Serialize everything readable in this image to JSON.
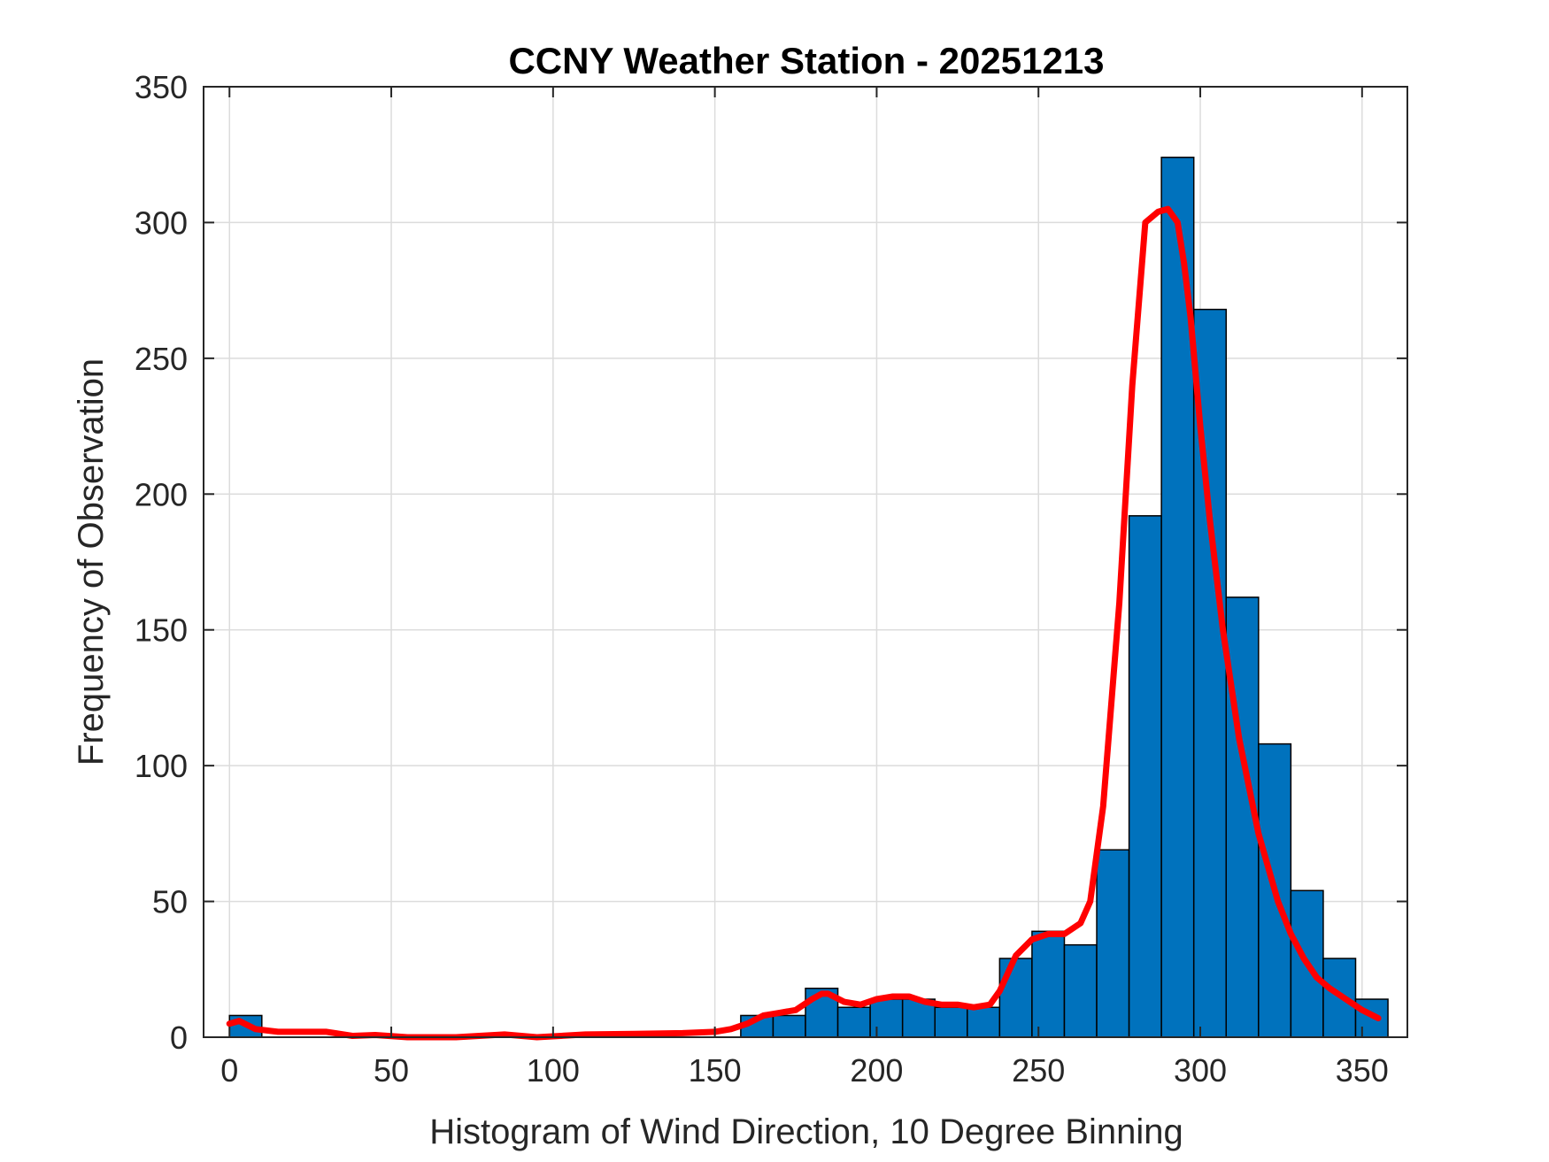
{
  "chart_data": {
    "type": "bar",
    "title": "CCNY Weather Station - 20251213",
    "xlabel": "Histogram of Wind Direction, 10 Degree Binning",
    "ylabel": "Frequency of Observation",
    "xlim": [
      -8,
      364
    ],
    "ylim": [
      0,
      350
    ],
    "xticks": [
      0,
      50,
      100,
      150,
      200,
      250,
      300,
      350
    ],
    "yticks": [
      0,
      50,
      100,
      150,
      200,
      250,
      300,
      350
    ],
    "grid": true,
    "bin_width": 10,
    "bins": [
      {
        "start": 0,
        "value": 8
      },
      {
        "start": 10,
        "value": 0
      },
      {
        "start": 20,
        "value": 0
      },
      {
        "start": 30,
        "value": 0
      },
      {
        "start": 40,
        "value": 0
      },
      {
        "start": 50,
        "value": 0
      },
      {
        "start": 60,
        "value": 0
      },
      {
        "start": 70,
        "value": 0
      },
      {
        "start": 80,
        "value": 0
      },
      {
        "start": 90,
        "value": 0
      },
      {
        "start": 100,
        "value": 0
      },
      {
        "start": 110,
        "value": 0
      },
      {
        "start": 120,
        "value": 0
      },
      {
        "start": 130,
        "value": 0
      },
      {
        "start": 140,
        "value": 0
      },
      {
        "start": 150,
        "value": 0
      },
      {
        "start": 158,
        "value": 8
      },
      {
        "start": 168,
        "value": 8
      },
      {
        "start": 178,
        "value": 18
      },
      {
        "start": 188,
        "value": 11
      },
      {
        "start": 198,
        "value": 14
      },
      {
        "start": 208,
        "value": 14
      },
      {
        "start": 218,
        "value": 11
      },
      {
        "start": 228,
        "value": 11
      },
      {
        "start": 238,
        "value": 29
      },
      {
        "start": 248,
        "value": 39
      },
      {
        "start": 258,
        "value": 34
      },
      {
        "start": 268,
        "value": 69
      },
      {
        "start": 278,
        "value": 192
      },
      {
        "start": 288,
        "value": 324
      },
      {
        "start": 298,
        "value": 268
      },
      {
        "start": 308,
        "value": 162
      },
      {
        "start": 318,
        "value": 108
      },
      {
        "start": 328,
        "value": 54
      },
      {
        "start": 338,
        "value": 29
      },
      {
        "start": 348,
        "value": 14
      }
    ],
    "bar_color": "#0072bd",
    "fit_color": "#ff0000",
    "fit_curve": {
      "x": [
        0,
        3,
        8,
        15,
        25,
        30,
        38,
        45,
        55,
        70,
        85,
        95,
        110,
        125,
        140,
        150,
        155,
        160,
        165,
        170,
        175,
        180,
        183,
        185,
        190,
        195,
        200,
        205,
        210,
        215,
        220,
        225,
        230,
        235,
        238,
        243,
        248,
        253,
        258,
        263,
        266,
        270,
        275,
        279,
        283,
        287,
        290,
        293,
        295,
        297,
        300,
        303,
        307,
        312,
        318,
        324,
        328,
        332,
        336,
        340,
        345,
        350,
        355
      ],
      "y": [
        5,
        6,
        3,
        2,
        2,
        2,
        0.5,
        0.8,
        0,
        0,
        1,
        0,
        1,
        1.2,
        1.5,
        2,
        3,
        5,
        8,
        9,
        10,
        14,
        16,
        16,
        13,
        12,
        14,
        15,
        15,
        13,
        12,
        12,
        11,
        12,
        17,
        30,
        36,
        38,
        38,
        42,
        50,
        85,
        160,
        240,
        300,
        304,
        305,
        300,
        285,
        265,
        225,
        190,
        150,
        110,
        75,
        50,
        38,
        29,
        22,
        18,
        14,
        10,
        7
      ]
    }
  }
}
